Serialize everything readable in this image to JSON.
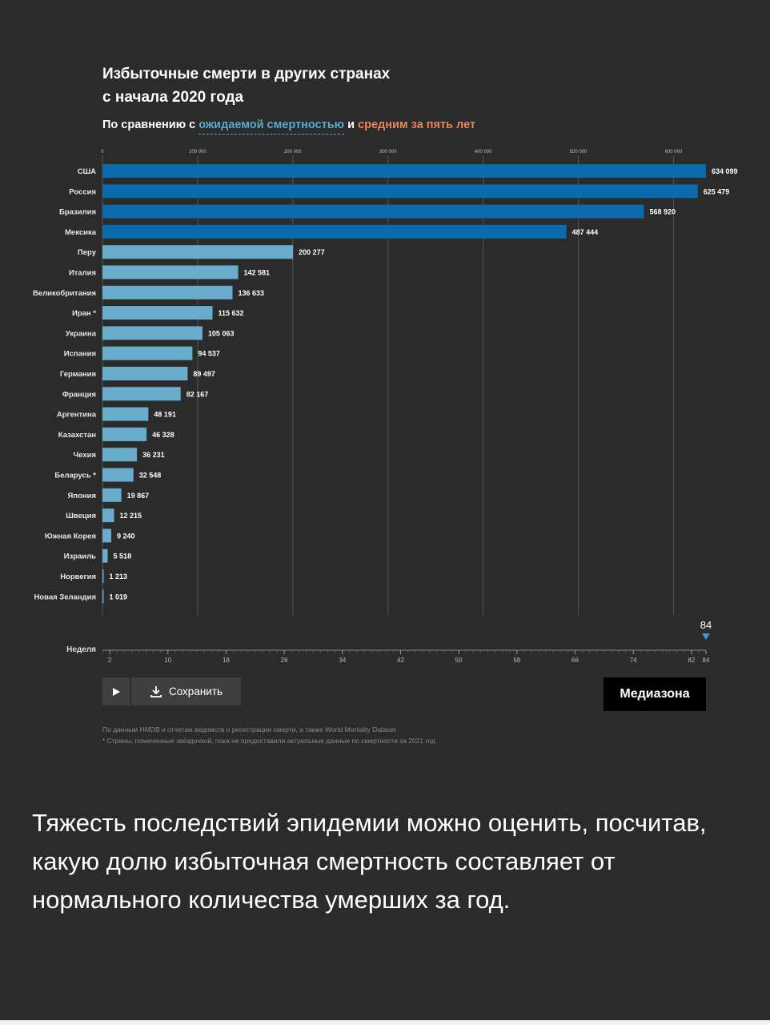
{
  "title_line1": "Избыточные смерти в других странах",
  "title_line2": "с начала 2020 года",
  "subtitle_prefix": "По сравнению с",
  "subtitle_blue": "ожидаемой смертностью",
  "subtitle_and": "и",
  "subtitle_orange": "средним за пять лет",
  "chart_data": {
    "type": "bar",
    "orientation": "horizontal",
    "categories": [
      "США",
      "Россия",
      "Бразилия",
      "Мексика",
      "Перу",
      "Италия",
      "Великобритания",
      "Иран *",
      "Украина",
      "Испания",
      "Германия",
      "Франция",
      "Аргентина",
      "Казахстан",
      "Чехия",
      "Беларусь *",
      "Япония",
      "Швеция",
      "Южная Корея",
      "Израиль",
      "Норвегия",
      "Новая Зеландия"
    ],
    "values": [
      634099,
      625479,
      568920,
      487444,
      200277,
      142581,
      136633,
      115632,
      105063,
      94537,
      89497,
      82167,
      48191,
      46328,
      36231,
      32548,
      19867,
      12215,
      9240,
      5518,
      1213,
      1019
    ],
    "value_labels": [
      "634 099",
      "625 479",
      "568 920",
      "487 444",
      "200 277",
      "142 581",
      "136 633",
      "115 632",
      "105 063",
      "94 537",
      "89 497",
      "82 167",
      "48 191",
      "46 328",
      "36 231",
      "32 548",
      "19 867",
      "12 215",
      "9 240",
      "5 518",
      "1 213",
      "1 019"
    ],
    "xlim": [
      0,
      634099
    ],
    "x_ticks": [
      0,
      100000,
      200000,
      300000,
      400000,
      500000,
      600000
    ],
    "x_tick_labels": [
      "0",
      "100 000",
      "200 000",
      "300 000",
      "400 000",
      "500 000",
      "600 000"
    ],
    "grid": true,
    "colors": {
      "dark_blue": "#0a6aab",
      "light_blue": "#6aaccc",
      "grid": "#555555",
      "tick": "#bdbdbd"
    }
  },
  "timeline": {
    "label": "Неделя",
    "min": 1,
    "max": 84,
    "current": 84,
    "current_label": "84",
    "ticks": [
      2,
      10,
      18,
      26,
      34,
      42,
      50,
      58,
      66,
      74,
      82,
      84
    ],
    "tick_labels": [
      "2",
      "10",
      "18",
      "26",
      "34",
      "42",
      "50",
      "58",
      "66",
      "74",
      "82",
      "84"
    ],
    "marker_color": "#3a9ad9"
  },
  "controls": {
    "play_icon": "play-icon",
    "save_icon": "download-icon",
    "save_label": "Сохранить"
  },
  "logo_text": "Медиазона",
  "source_line1": "По данным HMDB и отчетам ведомств о регистрации смерти, а также World Mortality Dataset",
  "source_line2": "* Страны, помеченные звёздочкой, пока не предоставили актуальные данные по смертности за 2021 год",
  "body_text": "Тяжесть последствий эпидемии можно оценить, посчитав, какую долю избыточная смертность составляет от нормального количества умерших за год."
}
